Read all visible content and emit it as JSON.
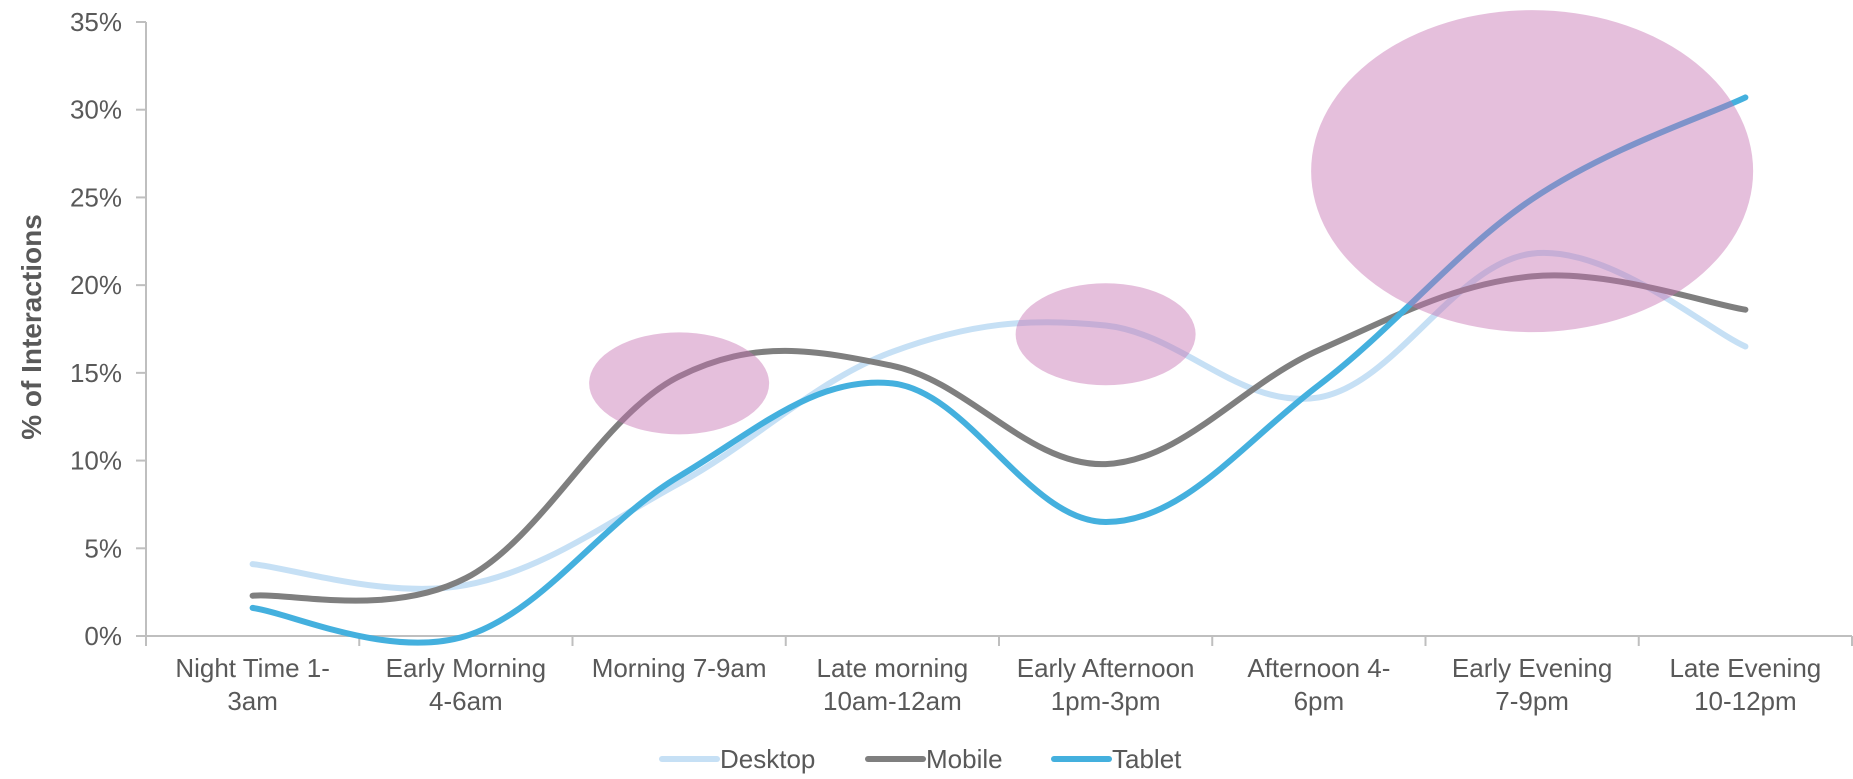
{
  "chart_data": {
    "type": "line",
    "ylabel": "% of Interactions",
    "xlabel": "",
    "ylim": [
      0,
      35
    ],
    "yticks": [
      "0%",
      "5%",
      "10%",
      "15%",
      "20%",
      "25%",
      "30%",
      "35%"
    ],
    "categories": [
      [
        "Night Time 1-",
        "3am"
      ],
      [
        "Early Morning",
        "4-6am"
      ],
      [
        "Morning 7-9am"
      ],
      [
        "Late morning",
        "10am-12am"
      ],
      [
        "Early Afternoon",
        "1pm-3pm"
      ],
      [
        "Afternoon 4-",
        "6pm"
      ],
      [
        "Early Evening",
        "7-9pm"
      ],
      [
        "Late Evening",
        "10-12pm"
      ]
    ],
    "series": [
      {
        "name": "Desktop",
        "color": "#c6e0f5",
        "values": [
          4.1,
          2.9,
          8.7,
          16.2,
          17.7,
          13.6,
          21.8,
          16.5
        ]
      },
      {
        "name": "Mobile",
        "color": "#7f7f7f",
        "values": [
          2.3,
          3.3,
          14.8,
          15.4,
          9.8,
          16.3,
          20.5,
          18.6
        ]
      },
      {
        "name": "Tablet",
        "color": "#44b0de",
        "values": [
          1.6,
          0.0,
          9.1,
          14.4,
          6.5,
          14.3,
          24.9,
          30.7
        ]
      }
    ],
    "legend": "bottom",
    "grid": false,
    "highlights": [
      {
        "category": 2,
        "value": 14.4,
        "color": "#c670b1"
      },
      {
        "category": 4,
        "value": 17.2,
        "color": "#c670b1"
      },
      {
        "category": 6,
        "value": 26.5,
        "color": "#c670b1"
      }
    ]
  }
}
